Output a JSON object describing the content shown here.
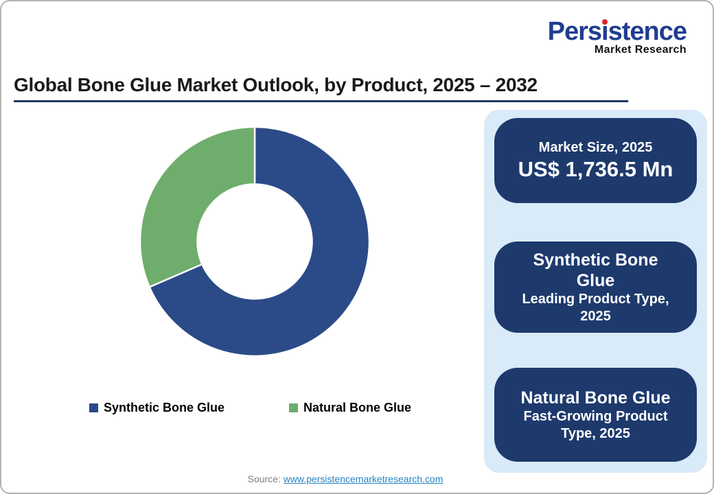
{
  "branding": {
    "name": "Persistence",
    "name_pre": "Pers",
    "name_i_dotless": "ı",
    "name_post": "stence",
    "tagline": "Market Research"
  },
  "header": {
    "title": "Global Bone Glue Market Outlook, by Product, 2025 – 2032"
  },
  "chart_data": {
    "type": "pie",
    "subtype": "donut",
    "title": "Global Bone Glue Market Outlook, by Product, 2025 – 2032",
    "start_angle_deg": 0,
    "donut_hole_ratio": 0.5,
    "legend_position": "bottom",
    "segments": [
      {
        "label": "Synthetic Bone Glue",
        "value_pct": 68.5,
        "color": "#2B4A88"
      },
      {
        "label": "Natural Bone Glue",
        "value_pct": 31.5,
        "color": "#6EAD6C"
      }
    ]
  },
  "panel": {
    "boxes": [
      {
        "title": "Market Size, 2025",
        "value": "US$ 1,736.5 Mn"
      },
      {
        "title": "Synthetic Bone Glue",
        "subtitle": "Leading Product Type, 2025"
      },
      {
        "title": "Natural Bone Glue",
        "subtitle": "Fast-Growing Product Type, 2025"
      }
    ]
  },
  "footer": {
    "source_label": "Source:",
    "source_link": "www.persistencemarketresearch.com"
  },
  "theme": {
    "logo_blue": "#203D90",
    "logo_red": "#D7262C",
    "title_color": "#1A1A1A",
    "rule_navy": "#1F3864",
    "panel_blue": "#D9EAF8",
    "box_navy": "#1E3A6D",
    "donut_blue": "#2B4A88",
    "donut_green": "#6EAD6C",
    "legend_text": "#000000",
    "source_gray": "#7F7F7F",
    "link_blue": "#2583C5",
    "border_gray": "#B3B3B3"
  }
}
